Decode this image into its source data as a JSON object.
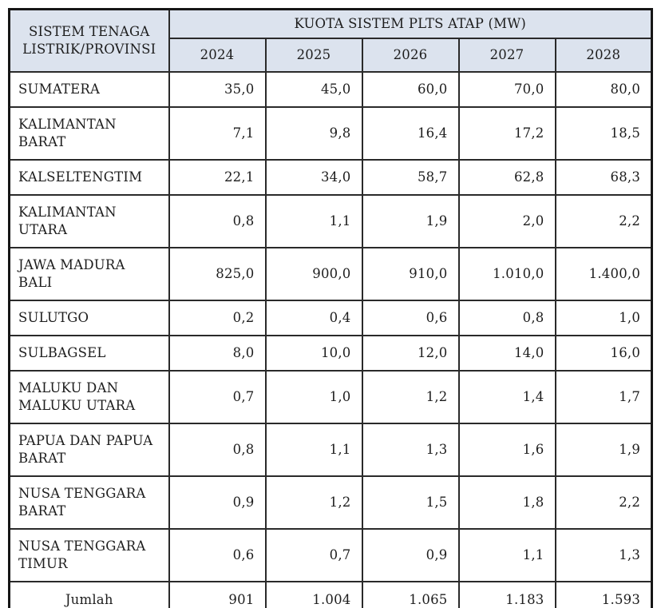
{
  "table": {
    "corner_header": "SISTEM TENAGA LISTRIK/PROVINSI",
    "title_header": "KUOTA SISTEM PLTS ATAP (MW)",
    "years": [
      "2024",
      "2025",
      "2026",
      "2027",
      "2028"
    ],
    "rows": [
      {
        "name": "SUMATERA",
        "values": [
          "35,0",
          "45,0",
          "60,0",
          "70,0",
          "80,0"
        ]
      },
      {
        "name": "KALIMANTAN BARAT",
        "values": [
          "7,1",
          "9,8",
          "16,4",
          "17,2",
          "18,5"
        ]
      },
      {
        "name": "KALSELTENGTIM",
        "values": [
          "22,1",
          "34,0",
          "58,7",
          "62,8",
          "68,3"
        ]
      },
      {
        "name": "KALIMANTAN UTARA",
        "values": [
          "0,8",
          "1,1",
          "1,9",
          "2,0",
          "2,2"
        ]
      },
      {
        "name": "JAWA MADURA BALI",
        "values": [
          "825,0",
          "900,0",
          "910,0",
          "1.010,0",
          "1.400,0"
        ]
      },
      {
        "name": "SULUTGO",
        "values": [
          "0,2",
          "0,4",
          "0,6",
          "0,8",
          "1,0"
        ]
      },
      {
        "name": "SULBAGSEL",
        "values": [
          "8,0",
          "10,0",
          "12,0",
          "14,0",
          "16,0"
        ]
      },
      {
        "name": "MALUKU DAN MALUKU UTARA",
        "values": [
          "0,7",
          "1,0",
          "1,2",
          "1,4",
          "1,7"
        ]
      },
      {
        "name": "PAPUA DAN PAPUA BARAT",
        "values": [
          "0,8",
          "1,1",
          "1,3",
          "1,6",
          "1,9"
        ]
      },
      {
        "name": "NUSA TENGGARA BARAT",
        "values": [
          "0,9",
          "1,2",
          "1,5",
          "1,8",
          "2,2"
        ]
      },
      {
        "name": "NUSA TENGGARA TIMUR",
        "values": [
          "0,6",
          "0,7",
          "0,9",
          "1,1",
          "1,3"
        ]
      }
    ],
    "footer": {
      "label": "Jumlah",
      "values": [
        "901",
        "1.004",
        "1.065",
        "1.183",
        "1.593"
      ]
    }
  },
  "colors": {
    "header_bg": "#dce3ee",
    "border": "#2a2a2a",
    "text": "#1d1d1d"
  }
}
